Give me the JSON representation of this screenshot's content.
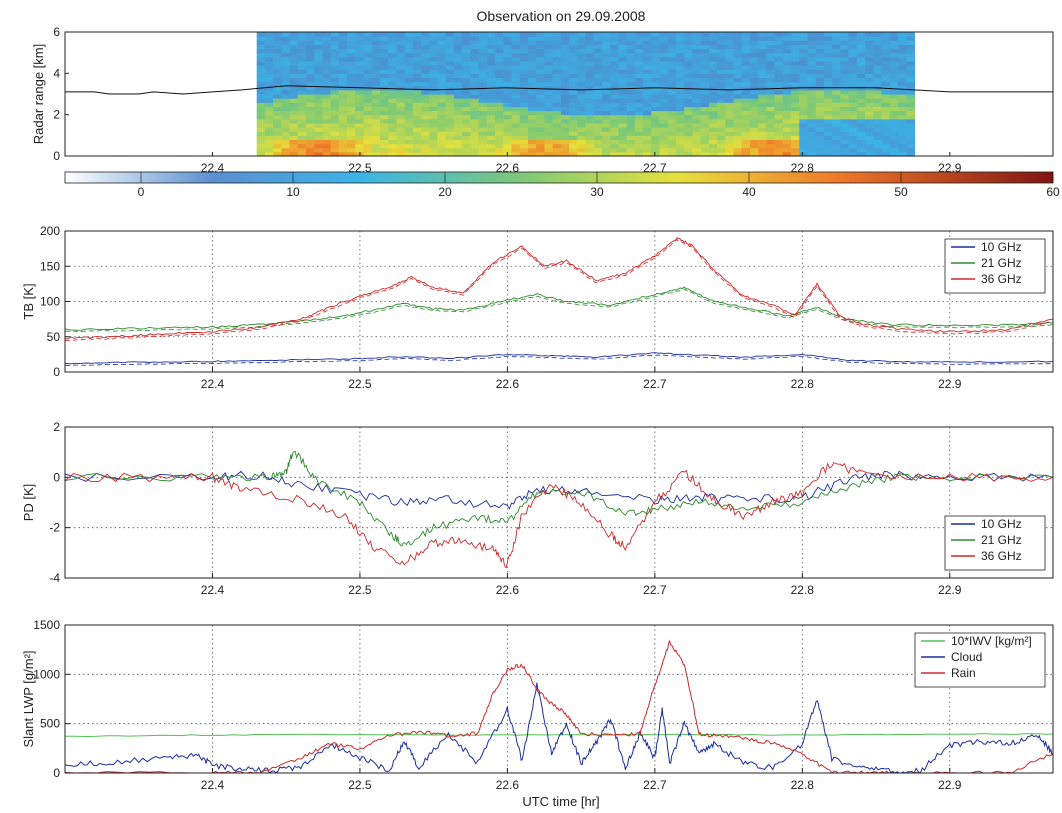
{
  "title": "Observation on 29.09.2008",
  "xlabel": "UTC time [hr]",
  "colors": {
    "ch10": "#1c2f9c",
    "ch21": "#2d8a2d",
    "ch36": "#cc2a2a",
    "iwv": "#55c055",
    "cloud": "#1c2f9c",
    "rain": "#cc2a2a"
  },
  "chart_data": [
    {
      "type": "heatmap",
      "ylabel": "Radar range [km]",
      "xlim": [
        22.3,
        22.97
      ],
      "ylim": [
        0,
        6
      ],
      "xticks": [
        "22.4",
        "22.5",
        "22.6",
        "22.7",
        "22.8",
        "22.9"
      ],
      "yticks": [
        "0",
        "2",
        "4",
        "6"
      ],
      "data_extent_x": [
        22.43,
        22.876
      ],
      "cloud_top_km": [
        [
          22.3,
          3.1
        ],
        [
          22.32,
          3.1
        ],
        [
          22.33,
          3.0
        ],
        [
          22.35,
          3.0
        ],
        [
          22.36,
          3.1
        ],
        [
          22.38,
          3.0
        ],
        [
          22.4,
          3.1
        ],
        [
          22.42,
          3.2
        ],
        [
          22.45,
          3.4
        ],
        [
          22.5,
          3.3
        ],
        [
          22.55,
          3.2
        ],
        [
          22.6,
          3.3
        ],
        [
          22.65,
          3.2
        ],
        [
          22.7,
          3.3
        ],
        [
          22.75,
          3.2
        ],
        [
          22.8,
          3.3
        ],
        [
          22.85,
          3.3
        ],
        [
          22.9,
          3.1
        ],
        [
          22.97,
          3.1
        ]
      ]
    },
    {
      "type": "colorbar",
      "range": [
        -5,
        60
      ],
      "ticks": [
        "0",
        "10",
        "20",
        "30",
        "40",
        "50",
        "60"
      ]
    },
    {
      "type": "line",
      "ylabel": "TB [K]",
      "xlim": [
        22.3,
        22.97
      ],
      "ylim": [
        0,
        200
      ],
      "xticks": [
        "22.4",
        "22.5",
        "22.6",
        "22.7",
        "22.8",
        "22.9"
      ],
      "yticks": [
        "0",
        "50",
        "100",
        "150",
        "200"
      ],
      "legend": "top-right",
      "series": [
        {
          "name": "10 GHz",
          "x": [
            22.3,
            22.35,
            22.4,
            22.45,
            22.5,
            22.53,
            22.56,
            22.6,
            22.63,
            22.66,
            22.7,
            22.73,
            22.76,
            22.8,
            22.83,
            22.86,
            22.9,
            22.97
          ],
          "y": [
            12,
            14,
            15,
            17,
            19,
            22,
            19,
            25,
            23,
            21,
            27,
            24,
            21,
            25,
            17,
            15,
            14,
            15
          ]
        },
        {
          "name": "21 GHz",
          "x": [
            22.3,
            22.35,
            22.4,
            22.43,
            22.46,
            22.49,
            22.51,
            22.53,
            22.55,
            22.57,
            22.6,
            22.62,
            22.64,
            22.67,
            22.7,
            22.72,
            22.74,
            22.77,
            22.79,
            22.81,
            22.83,
            22.86,
            22.9,
            22.95,
            22.97
          ],
          "y": [
            60,
            62,
            64,
            67,
            72,
            80,
            88,
            97,
            90,
            88,
            102,
            110,
            100,
            95,
            110,
            120,
            100,
            88,
            80,
            92,
            75,
            67,
            66,
            67,
            70
          ]
        },
        {
          "name": "36 GHz",
          "x": [
            22.3,
            22.33,
            22.36,
            22.4,
            22.43,
            22.46,
            22.48,
            22.5,
            22.52,
            22.535,
            22.55,
            22.57,
            22.59,
            22.61,
            22.625,
            22.64,
            22.66,
            22.68,
            22.7,
            22.715,
            22.725,
            22.74,
            22.76,
            22.78,
            22.795,
            22.81,
            22.825,
            22.84,
            22.87,
            22.9,
            22.94,
            22.97
          ],
          "y": [
            48,
            50,
            53,
            57,
            63,
            75,
            92,
            108,
            120,
            135,
            120,
            112,
            155,
            178,
            150,
            158,
            130,
            140,
            165,
            190,
            180,
            145,
            108,
            95,
            80,
            125,
            80,
            68,
            60,
            57,
            60,
            75
          ]
        }
      ]
    },
    {
      "type": "line",
      "ylabel": "PD [K]",
      "xlim": [
        22.3,
        22.97
      ],
      "ylim": [
        -4,
        2
      ],
      "xticks": [
        "22.4",
        "22.5",
        "22.6",
        "22.7",
        "22.8",
        "22.9"
      ],
      "yticks": [
        "-4",
        "-2",
        "0",
        "2"
      ],
      "legend": "bottom-right",
      "series": [
        {
          "name": "10 GHz",
          "x": [
            22.3,
            22.4,
            22.43,
            22.46,
            22.5,
            22.53,
            22.56,
            22.6,
            22.62,
            22.65,
            22.7,
            22.73,
            22.76,
            22.8,
            22.83,
            22.86,
            22.9,
            22.97
          ],
          "y": [
            0,
            0,
            0.1,
            -0.3,
            -0.7,
            -1.0,
            -0.9,
            -1.2,
            -0.5,
            -0.5,
            -0.9,
            -0.8,
            -0.9,
            -0.8,
            -0.1,
            0.1,
            0,
            0
          ]
        },
        {
          "name": "21 GHz",
          "x": [
            22.3,
            22.4,
            22.44,
            22.45,
            22.455,
            22.47,
            22.5,
            22.52,
            22.53,
            22.55,
            22.58,
            22.6,
            22.62,
            22.65,
            22.68,
            22.7,
            22.73,
            22.76,
            22.8,
            22.83,
            22.86,
            22.9,
            22.97
          ],
          "y": [
            0,
            0,
            0,
            0.2,
            1.1,
            -0.1,
            -1.0,
            -2.2,
            -2.7,
            -2.0,
            -1.6,
            -1.8,
            -0.6,
            -0.6,
            -1.4,
            -1.3,
            -0.9,
            -1.2,
            -1.0,
            -0.4,
            0,
            0,
            0
          ]
        },
        {
          "name": "36 GHz",
          "x": [
            22.3,
            22.38,
            22.4,
            22.42,
            22.46,
            22.49,
            22.51,
            22.53,
            22.55,
            22.57,
            22.59,
            22.6,
            22.61,
            22.63,
            22.65,
            22.67,
            22.68,
            22.7,
            22.72,
            22.74,
            22.76,
            22.78,
            22.8,
            22.82,
            22.84,
            22.9,
            22.97
          ],
          "y": [
            0,
            0,
            0,
            -0.5,
            -0.9,
            -1.6,
            -2.8,
            -3.4,
            -2.6,
            -2.5,
            -2.9,
            -3.5,
            -1.5,
            -0.3,
            -1.0,
            -2.3,
            -2.8,
            -1.0,
            0.2,
            -0.9,
            -1.5,
            -1.0,
            -0.6,
            0.6,
            0.1,
            0,
            0
          ]
        }
      ]
    },
    {
      "type": "line",
      "ylabel": "Slant LWP [g/m²]",
      "xlim": [
        22.3,
        22.97
      ],
      "ylim": [
        0,
        1500
      ],
      "xticks": [
        "22.4",
        "22.5",
        "22.6",
        "22.7",
        "22.8",
        "22.9"
      ],
      "yticks": [
        "0",
        "500",
        "1000",
        "1500"
      ],
      "legend": "top-right",
      "series": [
        {
          "name": "10*IWV [kg/m²]",
          "x": [
            22.3,
            22.4,
            22.5,
            22.6,
            22.7,
            22.8,
            22.9,
            22.97
          ],
          "y": [
            370,
            385,
            390,
            385,
            390,
            385,
            395,
            395
          ]
        },
        {
          "name": "Cloud",
          "x": [
            22.3,
            22.33,
            22.37,
            22.39,
            22.4,
            22.42,
            22.44,
            22.46,
            22.48,
            22.5,
            22.52,
            22.53,
            22.54,
            22.56,
            22.58,
            22.6,
            22.61,
            22.62,
            22.63,
            22.64,
            22.65,
            22.66,
            22.67,
            22.68,
            22.69,
            22.7,
            22.705,
            22.71,
            22.72,
            22.73,
            22.74,
            22.76,
            22.78,
            22.8,
            22.81,
            22.82,
            22.84,
            22.86,
            22.88,
            22.9,
            22.92,
            22.94,
            22.96,
            22.97
          ],
          "y": [
            80,
            110,
            150,
            180,
            80,
            40,
            20,
            60,
            300,
            150,
            30,
            320,
            50,
            400,
            100,
            650,
            120,
            900,
            200,
            500,
            100,
            300,
            550,
            50,
            400,
            150,
            650,
            100,
            500,
            200,
            300,
            100,
            50,
            300,
            750,
            150,
            50,
            20,
            20,
            280,
            320,
            300,
            380,
            200
          ]
        },
        {
          "name": "Rain",
          "x": [
            22.3,
            22.4,
            22.43,
            22.46,
            22.48,
            22.5,
            22.52,
            22.54,
            22.56,
            22.58,
            22.59,
            22.6,
            22.61,
            22.62,
            22.63,
            22.64,
            22.65,
            22.67,
            22.69,
            22.7,
            22.71,
            22.72,
            22.73,
            22.74,
            22.76,
            22.78,
            22.8,
            22.82,
            22.84,
            22.86,
            22.9,
            22.94,
            22.97
          ],
          "y": [
            0,
            0,
            0,
            150,
            300,
            250,
            380,
            420,
            380,
            400,
            800,
            1050,
            1100,
            850,
            700,
            600,
            400,
            380,
            400,
            900,
            1320,
            1100,
            400,
            380,
            350,
            300,
            200,
            0,
            0,
            0,
            0,
            0,
            200
          ]
        }
      ]
    }
  ]
}
